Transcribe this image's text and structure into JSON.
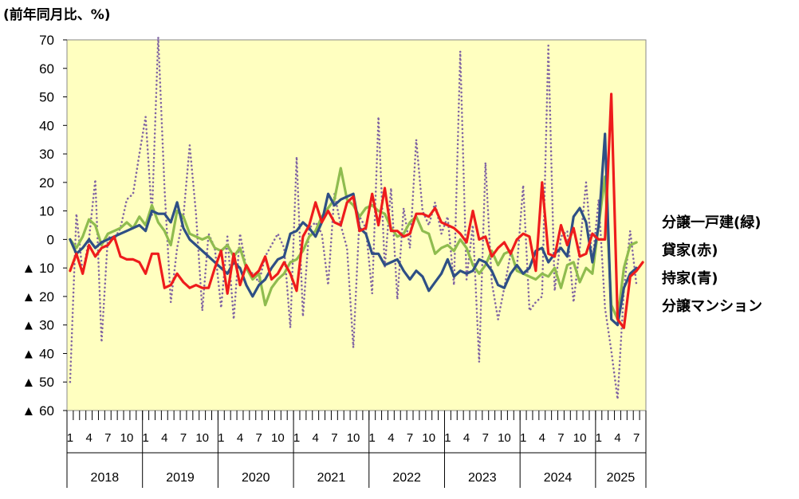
{
  "chart_data": {
    "type": "line",
    "unit_label": "(前年同月比、%)",
    "ylim": [
      -60,
      70
    ],
    "yticks": [
      70,
      60,
      50,
      40,
      30,
      20,
      10,
      0,
      -10,
      -20,
      -30,
      -40,
      -50,
      -60
    ],
    "ytick_labels": [
      "70",
      "60",
      "50",
      "40",
      "30",
      "20",
      "10",
      "0",
      "▲ 10",
      "▲ 20",
      "▲ 30",
      "▲ 40",
      "▲ 50",
      "▲ 60"
    ],
    "month_labels": [
      "1",
      "4",
      "7",
      "10",
      "1",
      "4",
      "7",
      "10",
      "1",
      "4",
      "7",
      "10",
      "1",
      "4",
      "7",
      "10",
      "1",
      "4",
      "7",
      "10",
      "1",
      "4",
      "7",
      "10",
      "1",
      "4",
      "7",
      "10",
      "1",
      "4",
      "7"
    ],
    "years": [
      "2018",
      "2019",
      "2020",
      "2021",
      "2022",
      "2023",
      "2024",
      "2025"
    ],
    "x_start": "2018-01",
    "grid": false,
    "legend_position": "right",
    "series": [
      {
        "name": "分譲一戸建(緑)",
        "color": "#8FBC4F",
        "style": "solid",
        "values": [
          0,
          -3,
          1,
          7,
          5,
          -2,
          2,
          3,
          4,
          6,
          4,
          8,
          5,
          12,
          6,
          3,
          -2,
          10,
          8,
          2,
          1,
          0,
          1,
          -3,
          -4,
          -2,
          -6,
          -3,
          -10,
          -14,
          -12,
          -23,
          -17,
          -14,
          -12,
          -8,
          -7,
          -4,
          1,
          3,
          8,
          11,
          14,
          25,
          14,
          12,
          8,
          11,
          12,
          10,
          9,
          4,
          1,
          2,
          6,
          8,
          3,
          2,
          -5,
          -3,
          -2,
          -4,
          0,
          -3,
          -9,
          -12,
          -9,
          -4,
          -9,
          -5,
          -4,
          -11,
          -12,
          -13,
          -14,
          -12,
          -13,
          -10,
          -17,
          -9,
          -8,
          -15,
          -10,
          -12,
          5,
          22,
          -23,
          -28,
          -10,
          -2,
          -1
        ]
      },
      {
        "name": "貸家(赤)",
        "color": "#EE1C1C",
        "style": "solid",
        "values": [
          -11,
          -5,
          -12,
          -2,
          -6,
          -3,
          -2,
          1,
          -6,
          -7,
          -7,
          -8,
          -12,
          -5,
          -5,
          -17,
          -16,
          -12,
          -15,
          -17,
          -16,
          -17,
          -17,
          -10,
          -4,
          -19,
          -5,
          -16,
          -9,
          -13,
          -11,
          -6,
          -14,
          -12,
          -8,
          -12,
          -18,
          1,
          5,
          13,
          6,
          10,
          6,
          5,
          13,
          15,
          3,
          4,
          16,
          5,
          18,
          3,
          3,
          1,
          2,
          9,
          9,
          8,
          11,
          6,
          5,
          4,
          2,
          -1,
          10,
          0,
          1,
          -6,
          -3,
          -1,
          -5,
          0,
          2,
          1,
          -11,
          20,
          -5,
          -6,
          5,
          -2,
          4,
          -6,
          -5,
          2,
          0,
          0,
          51,
          -28,
          -31,
          -13,
          -11,
          -8
        ]
      },
      {
        "name": "持家(青)",
        "color": "#2E4F85",
        "style": "solid",
        "values": [
          0,
          -5,
          -3,
          0,
          -3,
          -1,
          0,
          1,
          2,
          3,
          4,
          5,
          3,
          10,
          9,
          9,
          6,
          13,
          4,
          0,
          -2,
          -4,
          -6,
          -8,
          -10,
          -12,
          -8,
          -10,
          -16,
          -20,
          -16,
          -14,
          -10,
          -7,
          -6,
          2,
          3,
          6,
          4,
          1,
          6,
          16,
          12,
          14,
          15,
          16,
          4,
          2,
          -5,
          -5,
          -9,
          -8,
          -7,
          -11,
          -14,
          -11,
          -13,
          -18,
          -15,
          -12,
          -7,
          -13,
          -11,
          -12,
          -11,
          -7,
          -8,
          -11,
          -16,
          -17,
          -12,
          -9,
          -12,
          -10,
          -4,
          -3,
          -8,
          -5,
          -3,
          -6,
          8,
          11,
          6,
          -8,
          5,
          37,
          -28,
          -30,
          -17,
          -12,
          -10
        ]
      },
      {
        "name": "分譲マンション",
        "color": "#8064A2",
        "style": "dotted",
        "values": [
          -50,
          9,
          -12,
          0,
          21,
          -36,
          1,
          0,
          4,
          14,
          16,
          30,
          43,
          8,
          71,
          18,
          -22,
          -3,
          8,
          33,
          9,
          -25,
          2,
          -3,
          -24,
          1,
          -28,
          2,
          -10,
          -12,
          -15,
          -6,
          -2,
          2,
          -3,
          -31,
          29,
          -27,
          4,
          6,
          2,
          -16,
          16,
          5,
          -3,
          -38,
          8,
          4,
          -19,
          43,
          -10,
          18,
          -21,
          11,
          -3,
          35,
          10,
          5,
          13,
          2,
          8,
          -16,
          66,
          -14,
          5,
          -43,
          27,
          -15,
          -28,
          -17,
          -5,
          -10,
          19,
          -25,
          -22,
          -20,
          68,
          -18,
          1,
          3,
          -22,
          -3,
          20,
          -8,
          14,
          -24,
          -39,
          -56,
          -18,
          3,
          -16
        ]
      }
    ]
  }
}
